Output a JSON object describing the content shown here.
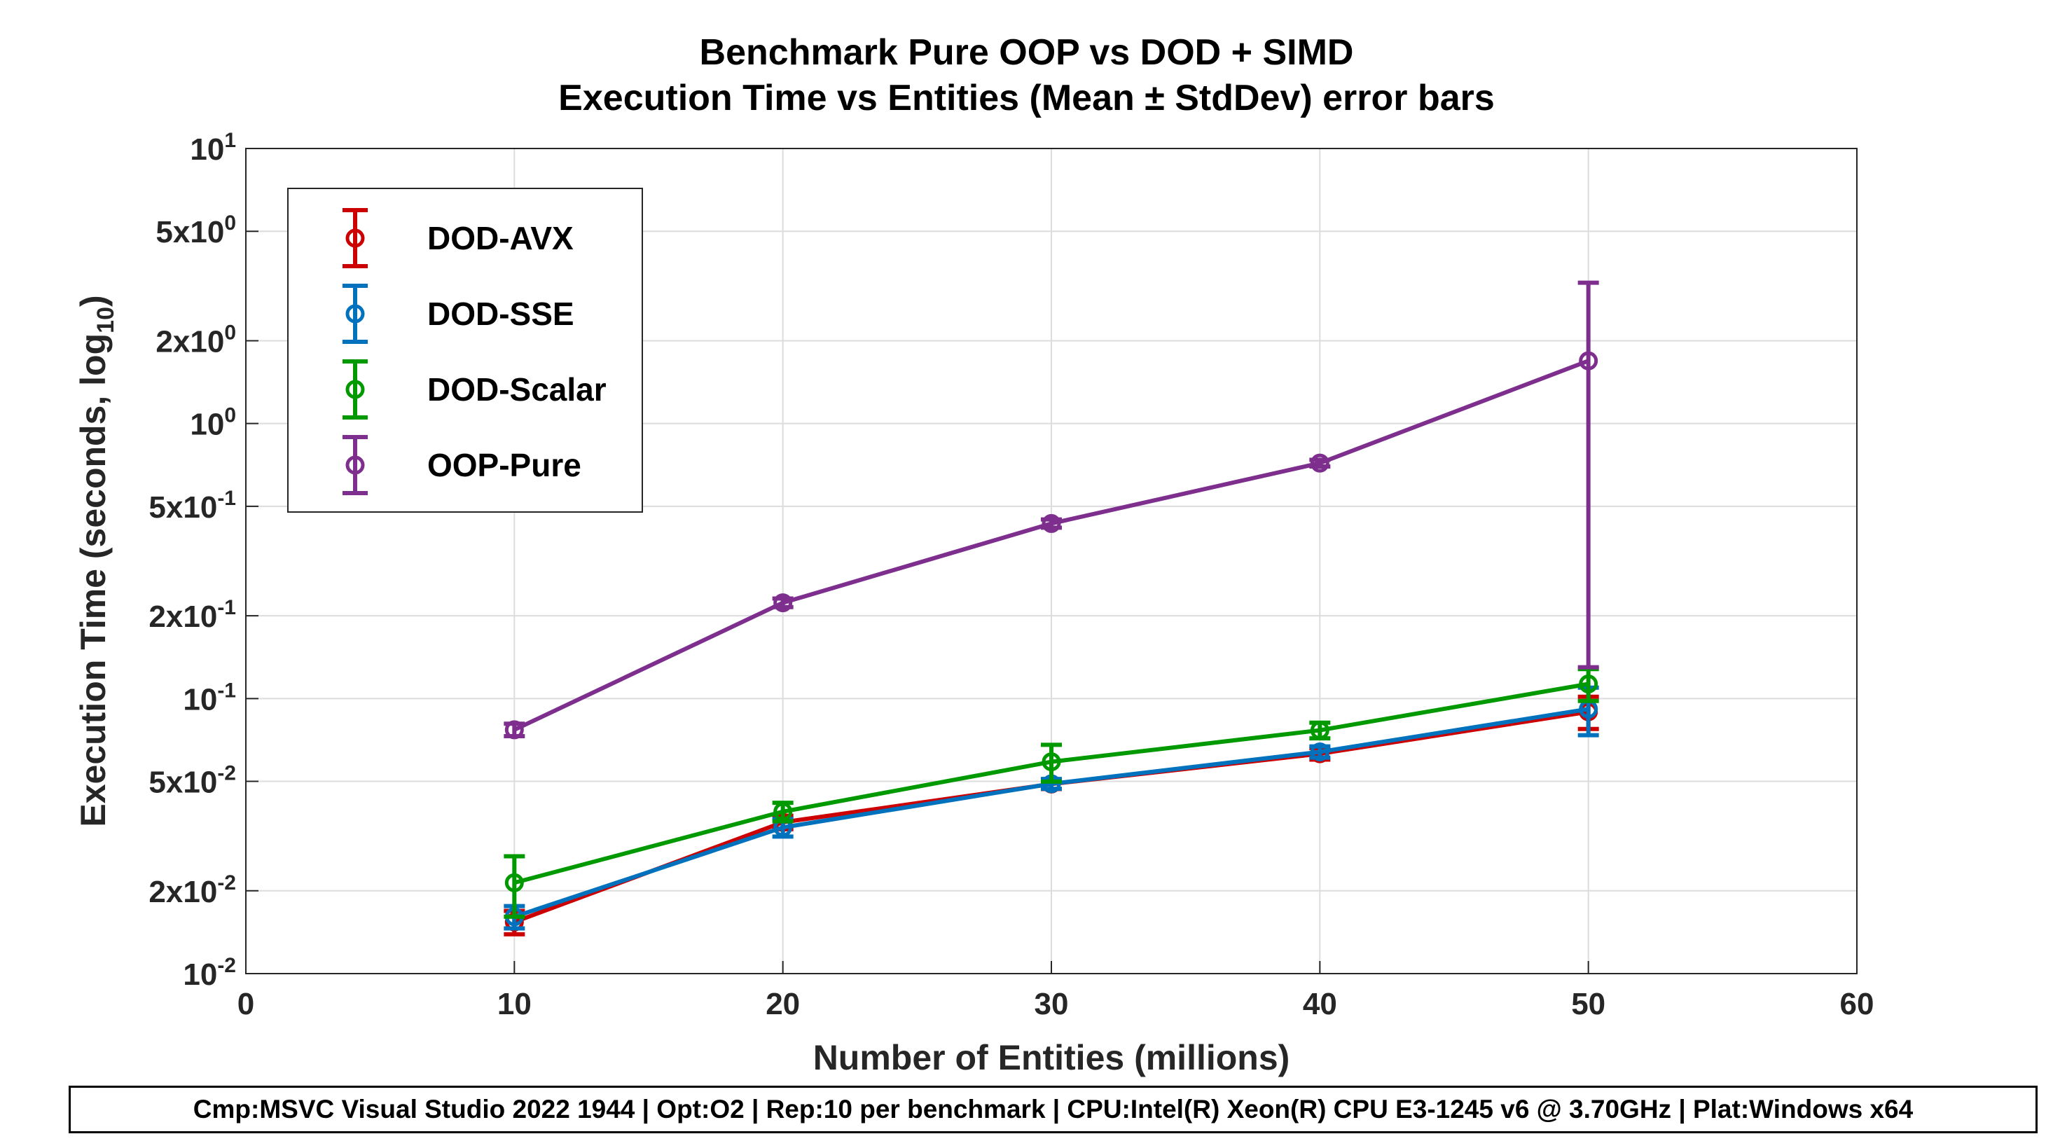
{
  "chart_data": {
    "type": "line",
    "title": "Benchmark Pure OOP vs DOD + SIMD",
    "subtitle": "Execution Time vs Entities (Mean ± StdDev) error bars",
    "xlabel": "Number of Entities (millions)",
    "ylabel": "Execution Time (seconds, log",
    "ylabel_sub": "10",
    "ylabel_close": ")",
    "xlim": [
      0,
      60
    ],
    "ylim": [
      0.01,
      10
    ],
    "yscale": "log",
    "grid": true,
    "legend_placement": "top-left",
    "x_ticks": [
      0,
      10,
      20,
      30,
      40,
      50,
      60
    ],
    "y_ticks": [
      {
        "value": 10,
        "mant": "",
        "base": "10",
        "exp": "1"
      },
      {
        "value": 5,
        "mant": "5x",
        "base": "10",
        "exp": "0"
      },
      {
        "value": 2,
        "mant": "2x",
        "base": "10",
        "exp": "0"
      },
      {
        "value": 1,
        "mant": "",
        "base": "10",
        "exp": "0"
      },
      {
        "value": 0.5,
        "mant": "5x",
        "base": "10",
        "exp": "-1"
      },
      {
        "value": 0.2,
        "mant": "2x",
        "base": "10",
        "exp": "-1"
      },
      {
        "value": 0.1,
        "mant": "",
        "base": "10",
        "exp": "-1"
      },
      {
        "value": 0.05,
        "mant": "5x",
        "base": "10",
        "exp": "-2"
      },
      {
        "value": 0.02,
        "mant": "2x",
        "base": "10",
        "exp": "-2"
      },
      {
        "value": 0.01,
        "mant": "",
        "base": "10",
        "exp": "-2"
      }
    ],
    "x": [
      10,
      20,
      30,
      40,
      50
    ],
    "series": [
      {
        "name": "DOD-AVX",
        "color": "#CC0000",
        "values": [
          0.0154,
          0.0355,
          0.0489,
          0.063,
          0.0895
        ],
        "std": [
          0.0015,
          0.002,
          0.002,
          0.003,
          0.012
        ]
      },
      {
        "name": "DOD-SSE",
        "color": "#0072BD",
        "values": [
          0.0161,
          0.034,
          0.049,
          0.064,
          0.0916
        ],
        "std": [
          0.0015,
          0.0025,
          0.002,
          0.003,
          0.018
        ]
      },
      {
        "name": "DOD-Scalar",
        "color": "#009900",
        "values": [
          0.0214,
          0.0388,
          0.0589,
          0.0767,
          0.113
        ],
        "std": [
          0.0053,
          0.003,
          0.009,
          0.005,
          0.015
        ]
      },
      {
        "name": "OOP-Pure",
        "color": "#7E2F8E",
        "values": [
          0.077,
          0.223,
          0.433,
          0.718,
          1.69
        ],
        "std": [
          0.004,
          0.008,
          0.015,
          0.02,
          1.56
        ]
      }
    ]
  },
  "footer": "Cmp:MSVC Visual Studio 2022 1944 | Opt:O2 | Rep:10 per benchmark | CPU:Intel(R) Xeon(R) CPU E3-1245 v6 @ 3.70GHz | Plat:Windows x64"
}
